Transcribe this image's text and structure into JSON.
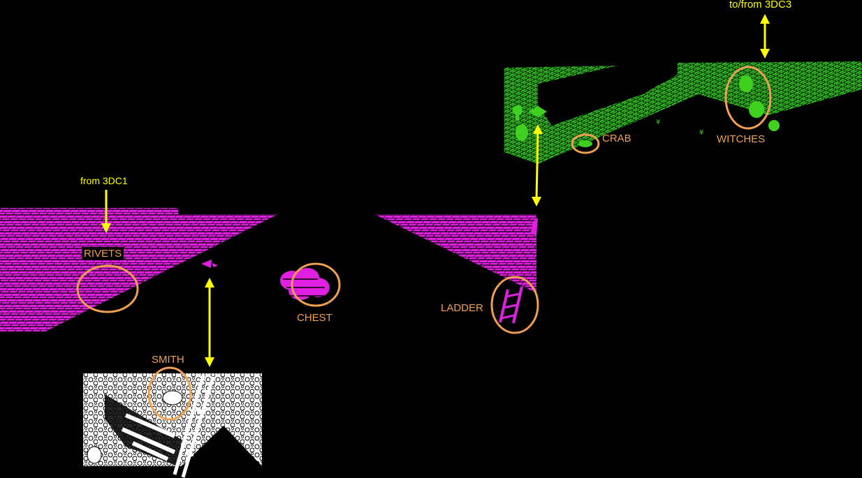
{
  "colors": {
    "background": "#000000",
    "arrow": "#ffff00",
    "highlight": "#f0a050",
    "magenta_room": "#e020e0",
    "green_room": "#40d020",
    "stone_room": "#ffffff"
  },
  "labels": {
    "to_from_3dc3": "to/from 3DC3",
    "from_3dc1": "from 3DC1",
    "rivets": "RIVETS",
    "chest": "CHEST",
    "ladder": "LADDER",
    "smith": "SMITH",
    "crab": "CRAB",
    "witches": "WITCHES"
  }
}
